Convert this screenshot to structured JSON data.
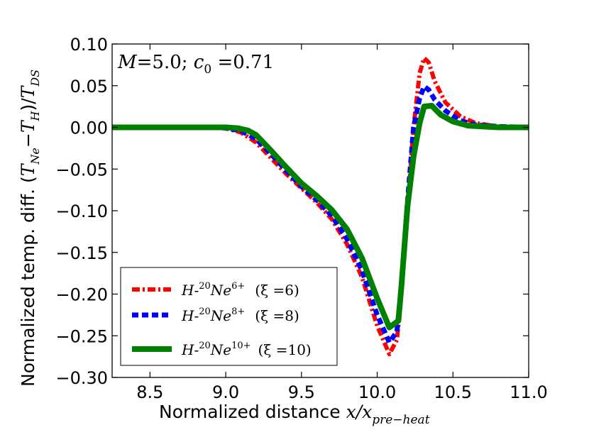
{
  "chart_data": {
    "type": "line",
    "xlabel": {
      "prefix": "Normalized distance ",
      "var": "x/x",
      "sub": "pre−heat"
    },
    "ylabel": {
      "prefix": "Normalized temp. diff. (",
      "t1": "T",
      "s1": "Ne",
      "minus": "−",
      "t2": "T",
      "s2": "H",
      "mid": ")/",
      "t3": "T",
      "s3": "DS"
    },
    "xlim": [
      8.25,
      11.0
    ],
    "ylim": [
      -0.3,
      0.1
    ],
    "xticks": [
      "8.5",
      "9.0",
      "9.5",
      "10.0",
      "10.5",
      "11.0"
    ],
    "xtick_values": [
      8.5,
      9.0,
      9.5,
      10.0,
      10.5,
      11.0
    ],
    "yticks": [
      "0.10",
      "0.05",
      "0.00",
      "−0.05",
      "−0.10",
      "−0.15",
      "−0.20",
      "−0.25",
      "−0.30"
    ],
    "ytick_values": [
      0.1,
      0.05,
      0.0,
      -0.05,
      -0.1,
      -0.15,
      -0.2,
      -0.25,
      -0.3
    ],
    "annotation": {
      "m": "M",
      "eq1": "=5.0; ",
      "c": "c",
      "csub": "0",
      "eq2": " =0.71"
    },
    "legend_position": "lower-left",
    "series": [
      {
        "name": "xi6",
        "label": {
          "h": "H",
          "dash": "-",
          "mass": "20",
          "ne": "Ne",
          "charge": "6+",
          "xi": "(ξ =6)"
        },
        "color": "#ff0000",
        "style": "dashdot",
        "points": [
          [
            8.25,
            0.0
          ],
          [
            8.5,
            0.0
          ],
          [
            8.8,
            0.0
          ],
          [
            8.95,
            0.0
          ],
          [
            9.0,
            -0.001
          ],
          [
            9.1,
            -0.006
          ],
          [
            9.2,
            -0.018
          ],
          [
            9.3,
            -0.037
          ],
          [
            9.4,
            -0.056
          ],
          [
            9.5,
            -0.073
          ],
          [
            9.6,
            -0.09
          ],
          [
            9.7,
            -0.11
          ],
          [
            9.8,
            -0.14
          ],
          [
            9.9,
            -0.18
          ],
          [
            10.0,
            -0.238
          ],
          [
            10.08,
            -0.272
          ],
          [
            10.13,
            -0.255
          ],
          [
            10.16,
            -0.2
          ],
          [
            10.2,
            -0.1
          ],
          [
            10.24,
            0.0
          ],
          [
            10.28,
            0.065
          ],
          [
            10.31,
            0.083
          ],
          [
            10.34,
            0.078
          ],
          [
            10.38,
            0.055
          ],
          [
            10.45,
            0.03
          ],
          [
            10.55,
            0.013
          ],
          [
            10.65,
            0.005
          ],
          [
            10.8,
            0.001
          ],
          [
            11.0,
            0.0
          ]
        ]
      },
      {
        "name": "xi8",
        "label": {
          "h": "H",
          "dash": "-",
          "mass": "20",
          "ne": "Ne",
          "charge": "8+",
          "xi": "(ξ =8)"
        },
        "color": "#0000ff",
        "style": "dashed",
        "points": [
          [
            8.25,
            0.0
          ],
          [
            8.5,
            0.0
          ],
          [
            8.8,
            0.0
          ],
          [
            8.95,
            0.0
          ],
          [
            9.0,
            -0.001
          ],
          [
            9.1,
            -0.004
          ],
          [
            9.2,
            -0.014
          ],
          [
            9.3,
            -0.032
          ],
          [
            9.4,
            -0.052
          ],
          [
            9.5,
            -0.071
          ],
          [
            9.6,
            -0.087
          ],
          [
            9.7,
            -0.106
          ],
          [
            9.8,
            -0.134
          ],
          [
            9.9,
            -0.172
          ],
          [
            10.0,
            -0.225
          ],
          [
            10.08,
            -0.258
          ],
          [
            10.13,
            -0.245
          ],
          [
            10.16,
            -0.19
          ],
          [
            10.2,
            -0.09
          ],
          [
            10.24,
            0.0
          ],
          [
            10.28,
            0.035
          ],
          [
            10.31,
            0.049
          ],
          [
            10.34,
            0.045
          ],
          [
            10.38,
            0.033
          ],
          [
            10.45,
            0.02
          ],
          [
            10.55,
            0.008
          ],
          [
            10.65,
            0.003
          ],
          [
            10.8,
            0.001
          ],
          [
            11.0,
            0.0
          ]
        ]
      },
      {
        "name": "xi10",
        "label": {
          "h": "H",
          "dash": "-",
          "mass": "20",
          "ne": "Ne",
          "charge": "10+",
          "xi": "(ξ =10)"
        },
        "color": "#008000",
        "style": "solid",
        "points": [
          [
            8.25,
            0.0
          ],
          [
            8.5,
            0.0
          ],
          [
            8.8,
            0.0
          ],
          [
            9.0,
            0.0
          ],
          [
            9.08,
            -0.001
          ],
          [
            9.15,
            -0.004
          ],
          [
            9.2,
            -0.009
          ],
          [
            9.3,
            -0.028
          ],
          [
            9.4,
            -0.048
          ],
          [
            9.5,
            -0.067
          ],
          [
            9.6,
            -0.082
          ],
          [
            9.7,
            -0.099
          ],
          [
            9.8,
            -0.122
          ],
          [
            9.9,
            -0.157
          ],
          [
            10.0,
            -0.205
          ],
          [
            10.08,
            -0.24
          ],
          [
            10.14,
            -0.232
          ],
          [
            10.16,
            -0.19
          ],
          [
            10.2,
            -0.095
          ],
          [
            10.24,
            -0.035
          ],
          [
            10.28,
            0.005
          ],
          [
            10.31,
            0.025
          ],
          [
            10.36,
            0.026
          ],
          [
            10.42,
            0.015
          ],
          [
            10.5,
            0.007
          ],
          [
            10.6,
            0.002
          ],
          [
            10.8,
            0.0
          ],
          [
            11.0,
            0.0
          ]
        ]
      }
    ]
  }
}
